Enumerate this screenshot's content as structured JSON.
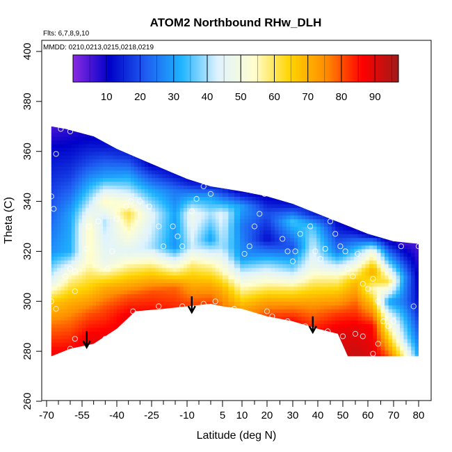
{
  "chart_data": {
    "type": "heatmap",
    "title": "ATOM2 Northbound RHw_DLH",
    "xlabel": "Latitude (deg N)",
    "ylabel": "Theta (C)",
    "xlim": [
      -70,
      80
    ],
    "ylim": [
      260,
      400
    ],
    "x_ticks": [
      -70,
      -55,
      -40,
      -25,
      -10,
      5,
      10,
      20,
      30,
      40,
      50,
      60,
      70,
      80
    ],
    "x_minor_ticks": [
      -65,
      -60,
      -50,
      -45,
      -35,
      -30,
      -20,
      -15,
      -5,
      0,
      15,
      25,
      35,
      45,
      55,
      65,
      75
    ],
    "y_ticks": [
      260,
      280,
      300,
      320,
      340,
      360,
      380,
      400
    ],
    "annotations": [
      "Flts: 6,7,8,9,10",
      "MMDD: 0210,0213,0215,0218,0219"
    ],
    "colorbar": {
      "range": [
        0,
        97
      ],
      "ticks": [
        10,
        20,
        30,
        40,
        50,
        60,
        70,
        80,
        90
      ],
      "stops": [
        "#8a2be2",
        "#0000c8",
        "#1e5cf0",
        "#1fb4ff",
        "#dff3ff",
        "#fffed0",
        "#ffd400",
        "#ff8c00",
        "#ff0000",
        "#a01a1a"
      ]
    },
    "envelope": {
      "top": [
        [
          -68,
          370
        ],
        [
          -62,
          369
        ],
        [
          -58,
          368
        ],
        [
          -50,
          366
        ],
        [
          -40,
          361
        ],
        [
          -30,
          357
        ],
        [
          -20,
          353
        ],
        [
          -10,
          349
        ],
        [
          0,
          346
        ],
        [
          10,
          344
        ],
        [
          20,
          342
        ],
        [
          30,
          339
        ],
        [
          40,
          335
        ],
        [
          50,
          331
        ],
        [
          60,
          327
        ],
        [
          70,
          324
        ],
        [
          80,
          323
        ]
      ],
      "bottom": [
        [
          -68,
          278
        ],
        [
          -60,
          281
        ],
        [
          -50,
          283
        ],
        [
          -40,
          289
        ],
        [
          -32,
          296
        ],
        [
          -20,
          297
        ],
        [
          -10,
          298
        ],
        [
          0,
          299
        ],
        [
          5,
          298
        ],
        [
          10,
          297
        ],
        [
          20,
          294
        ],
        [
          30,
          292
        ],
        [
          40,
          289
        ],
        [
          48,
          287
        ],
        [
          52,
          278
        ],
        [
          80,
          278
        ]
      ]
    },
    "rh_nodes": [
      {
        "x": -68,
        "theta": [
          [
            278,
            88
          ],
          [
            290,
            78
          ],
          [
            300,
            66
          ],
          [
            308,
            45
          ],
          [
            320,
            28
          ],
          [
            340,
            20
          ],
          [
            360,
            12
          ],
          [
            370,
            5
          ]
        ]
      },
      {
        "x": -60,
        "theta": [
          [
            281,
            86
          ],
          [
            292,
            78
          ],
          [
            300,
            70
          ],
          [
            310,
            55
          ],
          [
            320,
            32
          ],
          [
            335,
            30
          ],
          [
            350,
            18
          ],
          [
            368,
            8
          ]
        ]
      },
      {
        "x": -52,
        "theta": [
          [
            283,
            90
          ],
          [
            295,
            80
          ],
          [
            305,
            66
          ],
          [
            315,
            55
          ],
          [
            330,
            55
          ],
          [
            340,
            40
          ],
          [
            355,
            20
          ],
          [
            366,
            10
          ]
        ]
      },
      {
        "x": -45,
        "theta": [
          [
            286,
            88
          ],
          [
            298,
            80
          ],
          [
            306,
            70
          ],
          [
            315,
            48
          ],
          [
            332,
            40
          ],
          [
            340,
            55
          ],
          [
            350,
            30
          ],
          [
            363,
            12
          ]
        ]
      },
      {
        "x": -35,
        "theta": [
          [
            294,
            88
          ],
          [
            302,
            80
          ],
          [
            310,
            65
          ],
          [
            320,
            45
          ],
          [
            335,
            62
          ],
          [
            345,
            40
          ],
          [
            359,
            15
          ]
        ]
      },
      {
        "x": -25,
        "theta": [
          [
            296,
            86
          ],
          [
            304,
            80
          ],
          [
            312,
            64
          ],
          [
            322,
            40
          ],
          [
            335,
            45
          ],
          [
            345,
            30
          ],
          [
            355,
            10
          ]
        ]
      },
      {
        "x": -15,
        "theta": [
          [
            297,
            84
          ],
          [
            306,
            78
          ],
          [
            312,
            58
          ],
          [
            322,
            28
          ],
          [
            335,
            30
          ],
          [
            344,
            25
          ],
          [
            351,
            12
          ]
        ]
      },
      {
        "x": -8,
        "theta": [
          [
            298,
            82
          ],
          [
            306,
            72
          ],
          [
            315,
            58
          ],
          [
            322,
            42
          ],
          [
            335,
            48
          ],
          [
            342,
            30
          ],
          [
            348,
            12
          ]
        ]
      },
      {
        "x": 0,
        "theta": [
          [
            299,
            82
          ],
          [
            306,
            72
          ],
          [
            315,
            55
          ],
          [
            325,
            30
          ],
          [
            335,
            40
          ],
          [
            342,
            30
          ],
          [
            346,
            15
          ]
        ]
      },
      {
        "x": 5,
        "theta": [
          [
            298,
            78
          ],
          [
            305,
            70
          ],
          [
            312,
            55
          ],
          [
            322,
            40
          ],
          [
            335,
            45
          ],
          [
            345,
            15
          ]
        ]
      },
      {
        "x": 10,
        "theta": [
          [
            297,
            72
          ],
          [
            302,
            62
          ],
          [
            308,
            50
          ],
          [
            318,
            28
          ],
          [
            330,
            25
          ],
          [
            338,
            30
          ],
          [
            344,
            10
          ]
        ]
      },
      {
        "x": 20,
        "theta": [
          [
            294,
            82
          ],
          [
            300,
            72
          ],
          [
            306,
            58
          ],
          [
            315,
            38
          ],
          [
            325,
            12
          ],
          [
            335,
            20
          ],
          [
            342,
            10
          ]
        ]
      },
      {
        "x": 30,
        "theta": [
          [
            292,
            86
          ],
          [
            298,
            76
          ],
          [
            305,
            60
          ],
          [
            312,
            40
          ],
          [
            322,
            20
          ],
          [
            332,
            35
          ],
          [
            339,
            12
          ]
        ]
      },
      {
        "x": 38,
        "theta": [
          [
            289,
            84
          ],
          [
            298,
            75
          ],
          [
            306,
            62
          ],
          [
            314,
            48
          ],
          [
            325,
            40
          ],
          [
            330,
            35
          ],
          [
            335,
            15
          ]
        ]
      },
      {
        "x": 48,
        "theta": [
          [
            287,
            90
          ],
          [
            295,
            82
          ],
          [
            302,
            70
          ],
          [
            310,
            55
          ],
          [
            320,
            25
          ],
          [
            331,
            12
          ]
        ]
      },
      {
        "x": 55,
        "theta": [
          [
            278,
            93
          ],
          [
            290,
            88
          ],
          [
            300,
            78
          ],
          [
            308,
            68
          ],
          [
            315,
            48
          ],
          [
            322,
            30
          ],
          [
            329,
            10
          ]
        ]
      },
      {
        "x": 62,
        "theta": [
          [
            278,
            90
          ],
          [
            290,
            86
          ],
          [
            298,
            70
          ],
          [
            305,
            55
          ],
          [
            312,
            72
          ],
          [
            320,
            50
          ],
          [
            327,
            8
          ]
        ]
      },
      {
        "x": 68,
        "theta": [
          [
            278,
            80
          ],
          [
            288,
            60
          ],
          [
            294,
            48
          ],
          [
            300,
            30
          ],
          [
            308,
            62
          ],
          [
            316,
            35
          ],
          [
            325,
            8
          ]
        ]
      },
      {
        "x": 74,
        "theta": [
          [
            278,
            58
          ],
          [
            285,
            42
          ],
          [
            292,
            35
          ],
          [
            300,
            25
          ],
          [
            310,
            30
          ],
          [
            318,
            15
          ],
          [
            324,
            5
          ]
        ]
      },
      {
        "x": 80,
        "theta": [
          [
            278,
            30
          ],
          [
            290,
            20
          ],
          [
            300,
            12
          ],
          [
            312,
            8
          ],
          [
            323,
            5
          ]
        ]
      }
    ],
    "sample_points": [
      [
        -68,
        342
      ],
      [
        -67,
        337
      ],
      [
        -66,
        359
      ],
      [
        -64,
        369
      ],
      [
        -60,
        368
      ],
      [
        -57,
        369
      ],
      [
        -62,
        310
      ],
      [
        -60,
        313
      ],
      [
        -58,
        304
      ],
      [
        -66,
        297
      ],
      [
        -68,
        300
      ],
      [
        -58,
        285
      ],
      [
        -60,
        281
      ],
      [
        -53,
        321
      ],
      [
        -52,
        330
      ],
      [
        -48,
        332
      ],
      [
        -44,
        313
      ],
      [
        -42,
        320
      ],
      [
        -40,
        333
      ],
      [
        -36,
        338
      ],
      [
        -34,
        340
      ],
      [
        -30,
        340
      ],
      [
        -26,
        338
      ],
      [
        -22,
        330
      ],
      [
        -20,
        322
      ],
      [
        -16,
        330
      ],
      [
        -14,
        326
      ],
      [
        -12,
        322
      ],
      [
        -8,
        336
      ],
      [
        -6,
        341
      ],
      [
        -3,
        346
      ],
      [
        0,
        343
      ],
      [
        -45,
        285
      ],
      [
        -33,
        296
      ],
      [
        -22,
        298
      ],
      [
        -8,
        297
      ],
      [
        -3,
        299
      ],
      [
        2,
        300
      ],
      [
        7,
        296
      ],
      [
        11,
        319
      ],
      [
        13,
        322
      ],
      [
        15,
        330
      ],
      [
        17,
        335
      ],
      [
        19,
        343
      ],
      [
        21,
        344
      ],
      [
        23,
        343
      ],
      [
        25,
        347
      ],
      [
        26,
        325
      ],
      [
        28,
        320
      ],
      [
        30,
        316
      ],
      [
        31,
        320
      ],
      [
        33,
        327
      ],
      [
        35,
        339
      ],
      [
        37,
        330
      ],
      [
        39,
        320
      ],
      [
        41,
        317
      ],
      [
        43,
        321
      ],
      [
        45,
        332
      ],
      [
        47,
        327
      ],
      [
        49,
        322
      ],
      [
        51,
        320
      ],
      [
        52,
        313
      ],
      [
        54,
        310
      ],
      [
        56,
        319
      ],
      [
        58,
        307
      ],
      [
        60,
        305
      ],
      [
        62,
        309
      ],
      [
        64,
        300
      ],
      [
        66,
        292
      ],
      [
        68,
        290
      ],
      [
        70,
        292
      ],
      [
        73,
        322
      ],
      [
        78,
        298
      ],
      [
        80,
        322
      ],
      [
        14,
        294
      ],
      [
        22,
        294
      ],
      [
        28,
        292
      ],
      [
        35,
        290
      ],
      [
        44,
        288
      ],
      [
        50,
        286
      ],
      [
        55,
        287
      ],
      [
        58,
        286
      ],
      [
        62,
        279
      ],
      [
        64,
        283
      ],
      [
        -58,
        312
      ],
      [
        -42,
        286
      ],
      [
        -12,
        298
      ],
      [
        8,
        297
      ],
      [
        20,
        296
      ]
    ],
    "arrows": [
      [
        -53,
        288
      ],
      [
        -8,
        302
      ],
      [
        38,
        294
      ]
    ]
  }
}
